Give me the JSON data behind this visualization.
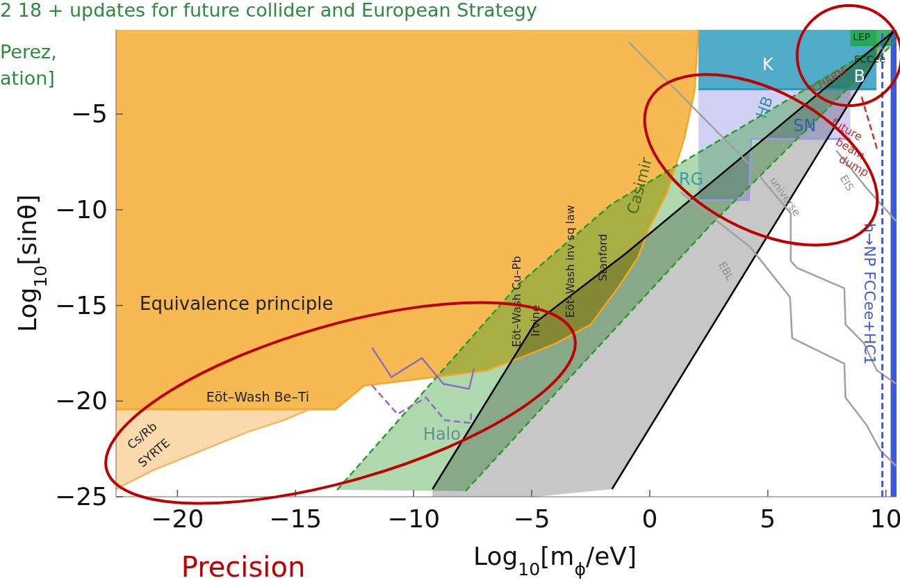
{
  "chart_data": {
    "type": "line",
    "xlabel": "Log$_{10}$[m$_{ϕ}$/eV]",
    "ylabel": "Log$_{10}$[sinθ]",
    "xlim": [
      -22.6,
      10.45
    ],
    "ylim": [
      -25,
      -0.6
    ],
    "xticks": [
      -20,
      -15,
      -10,
      -5,
      0,
      5,
      10
    ],
    "yticks": [
      -25,
      -20,
      -15,
      -10,
      -5
    ],
    "series": [
      {
        "color": "#f5a623",
        "x": [
          -22.6,
          -13.3,
          -12.1,
          -6.9,
          -5.4,
          -4,
          -2.5,
          -1.3,
          -0.5,
          0,
          0.74,
          1.47,
          1.9,
          2.06
        ],
        "values": [
          -20.43,
          -20.43,
          -19.2,
          -18.4,
          -17.7,
          -17,
          -16,
          -14,
          -12.5,
          -10.9,
          -9.1,
          -6.25,
          -3.75,
          -0.6
        ],
        "lower": [
          -20.43,
          -20.43,
          -19.2,
          -18.4,
          -17.7,
          -17,
          -16,
          -14,
          -12.5,
          -10.9,
          -9.1,
          -6.25,
          -3.75,
          -0.6
        ],
        "upper": [
          -0.6,
          -0.6,
          -0.6,
          -0.6,
          -0.6,
          -0.6,
          -0.6,
          -0.6,
          -0.6,
          -0.6,
          -0.6,
          -0.6,
          -0.6,
          -0.6
        ]
      },
      {
        "color": "#f5b55a",
        "x": [
          -22.6,
          -21,
          -19,
          -17,
          -15.5,
          -14.4
        ],
        "values": [
          -24.6,
          -23.6,
          -22.6,
          -21.6,
          -21,
          -20.43
        ],
        "lower": [
          -24.6,
          -23.6,
          -22.6,
          -21.6,
          -21,
          -20.43
        ],
        "upper": [
          -20.43,
          -20.43,
          -20.43,
          -20.43,
          -20.43,
          -20.43
        ]
      },
      {
        "color": "#9a9ae8",
        "x": [
          2.06,
          4.2,
          4.3,
          8.5
        ],
        "values": [
          -9.5,
          -9.5,
          -6.3,
          -6.3
        ],
        "lower": [
          -9.5,
          -9.5,
          -6.3,
          -6.3
        ],
        "upper": [
          -3.7,
          -3.7,
          -3.7,
          -3.7
        ]
      },
      {
        "color": "#1f93b8",
        "x": [
          2.06,
          9.6
        ],
        "values": [
          -3.7,
          -3.7
        ],
        "lower": [
          -3.7,
          -3.7
        ],
        "upper": [
          -0.6,
          -0.6
        ]
      },
      {
        "color": "#1fa84a",
        "x": [
          8.5,
          10.2
        ],
        "values": [
          -1.4,
          -1.4
        ],
        "lower": [
          -1.4,
          -1.4
        ],
        "upper": [
          -0.6,
          -0.6
        ]
      },
      {
        "color": "#2a9a2a",
        "line_style": "dashed",
        "x": [
          -13.24,
          -7.8,
          -5.53,
          -4.35,
          -1.62,
          2.5,
          10.44
        ],
        "values": [
          -24.64,
          -17.03,
          -13.86,
          -12.61,
          -9.71,
          -6.7,
          -0.89
        ],
        "lower": [
          -24.64,
          -24.7,
          -21.65,
          -20.07,
          -16.42,
          -10.9,
          -1.14
        ],
        "upper": [
          -24.64,
          -17.03,
          -13.86,
          -12.61,
          -9.71,
          -6.7,
          -0.89
        ]
      },
      {
        "color": "#2a9a2a",
        "line_style": "dashed",
        "x": [
          -7.8,
          -4.35,
          2.5,
          10.44
        ],
        "values": [
          -24.7,
          -20.07,
          -10.9,
          -1.14
        ]
      },
      {
        "color": "#000000",
        "x": [
          -9.2,
          -4.85,
          -1.6,
          -1.03,
          10.3
        ],
        "values": [
          -24.6,
          -15.9,
          -12.84,
          -12.3,
          -0.7
        ],
        "lower": [
          -25,
          -25,
          -24.6,
          -23.46,
          -0.7
        ],
        "upper": [
          -24.6,
          -15.9,
          -12.84,
          -12.3,
          -0.7
        ]
      },
      {
        "color": "#000000",
        "x": [
          -1.6,
          10.3
        ],
        "values": [
          -24.6,
          -0.7
        ]
      },
      {
        "color": "#a0a0a0",
        "x": [
          -0.88,
          4.26,
          5.97,
          5.97,
          6.24,
          8.24,
          8.29,
          9.06,
          9.62,
          10.44
        ],
        "values": [
          -1.25,
          -7.68,
          -10.18,
          -12.68,
          -13.04,
          -14.1,
          -16.0,
          -16.96,
          -18.4,
          -19.1
        ]
      },
      {
        "color": "#a0a0a0",
        "x": [
          1.32,
          4.26,
          5.94,
          6.03,
          8.24,
          8.29,
          9.18,
          9.76,
          10.44
        ],
        "values": [
          -9.1,
          -11.96,
          -14.57,
          -16.71,
          -18.04,
          -19.82,
          -21.25,
          -22.57,
          -23.4
        ]
      },
      {
        "color": "#a0a0a0",
        "x": [
          7.9,
          9.2,
          10.44
        ],
        "values": [
          -6.9,
          -8.9,
          -10.6
        ]
      },
      {
        "color": "#8e6cc4",
        "x": [
          -11.76,
          -10.94,
          -9.65,
          -8.74,
          -7.65,
          -7.44
        ],
        "values": [
          -17.21,
          -18.75,
          -17.75,
          -19.1,
          -19.36,
          -18.29
        ]
      },
      {
        "color": "#8e6cc4",
        "line_style": "dashed",
        "x": [
          -11.76,
          -10.68,
          -9.47,
          -8.68,
          -7.59,
          -7.56
        ],
        "values": [
          -19.18,
          -20.68,
          -19.82,
          -21.0,
          -21.14,
          -20.64
        ]
      },
      {
        "color": "#d42a2a",
        "line_style": "dashed",
        "x": [
          8.97,
          9.62
        ],
        "values": [
          -4.1,
          -6.8
        ]
      }
    ],
    "bands": [
      {
        "axis": "x",
        "from": 10.2,
        "to": 10.45,
        "color": "#3b5bdb"
      }
    ],
    "ref_lines": [
      {
        "axis": "x",
        "value": 9.85,
        "label": "h→NP FCCee+HC1",
        "color": "#3b5bdb",
        "line_style": "dashed"
      }
    ],
    "annotations": [
      "2 18 + updates for future collider and European Strategy",
      "Perez,",
      "ation]",
      "Precision",
      "Equivalence principle",
      "Eöt–Wash Be–Ti",
      "Cs/Rb",
      "SYRTE",
      "Halo",
      "Eöt–Wash Cu–Pb",
      "Irvine",
      "Eöt–Wash inv sq law",
      "Stanford",
      "Casimir",
      "RG",
      "HB",
      "SN",
      "K",
      "CHARM",
      "B",
      "LEP",
      "FCCee",
      "future",
      "beam",
      "dump",
      "universe",
      "EBL",
      "EIS"
    ]
  }
}
